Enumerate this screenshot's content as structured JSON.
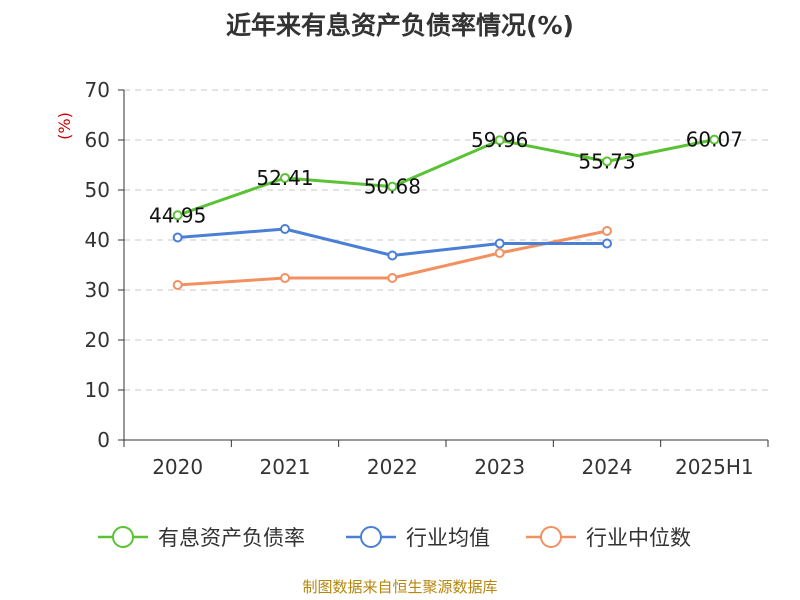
{
  "chart_data": {
    "type": "line",
    "title": "近年来有息资产负债率情况(%)",
    "y_unit": "(%)",
    "categories": [
      "2020",
      "2021",
      "2022",
      "2023",
      "2024",
      "2025H1"
    ],
    "ylim": [
      0,
      70
    ],
    "y_ticks": [
      0,
      10,
      20,
      30,
      40,
      50,
      60,
      70
    ],
    "grid": true,
    "legend_position": "bottom",
    "series": [
      {
        "name": "有息资产负债率",
        "color": "#5bc236",
        "values": [
          44.95,
          52.41,
          50.68,
          59.96,
          55.73,
          60.07
        ],
        "labels": [
          "44.95",
          "52.41",
          "50.68",
          "59.96",
          "55.73",
          "60.07"
        ]
      },
      {
        "name": "行业均值",
        "color": "#4a7fd6",
        "values": [
          40.5,
          42.2,
          36.9,
          39.3,
          39.3,
          null
        ]
      },
      {
        "name": "行业中位数",
        "color": "#f39060",
        "values": [
          31.0,
          32.4,
          32.4,
          37.4,
          41.8,
          null
        ]
      }
    ],
    "source": "制图数据来自恒生聚源数据库"
  }
}
